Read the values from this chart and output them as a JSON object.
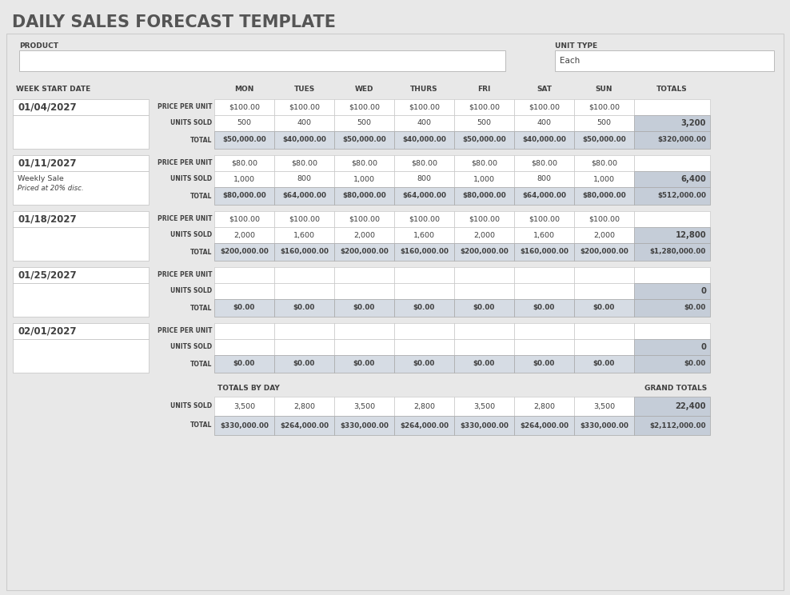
{
  "title": "DAILY SALES FORECAST TEMPLATE",
  "title_color": "#555555",
  "bg_color": "#e8e8e8",
  "panel_bg": "#e8e8e8",
  "white": "#ffffff",
  "cell_blue_light": "#d6dce4",
  "cell_blue_med": "#c5cdd8",
  "total_row_bg": "#dce6f1",
  "dark_text": "#404040",
  "product_label": "PRODUCT",
  "unit_type_label": "UNIT TYPE",
  "unit_type_value": "Each",
  "day_headers": [
    "MON",
    "TUES",
    "WED",
    "THURS",
    "FRI",
    "SAT",
    "SUN",
    "TOTALS"
  ],
  "weeks": [
    {
      "date": "01/04/2027",
      "note1": "",
      "note2": "",
      "price_per_unit": [
        "$100.00",
        "$100.00",
        "$100.00",
        "$100.00",
        "$100.00",
        "$100.00",
        "$100.00"
      ],
      "units_sold": [
        "500",
        "400",
        "500",
        "400",
        "500",
        "400",
        "500"
      ],
      "units_total": "3,200",
      "totals": [
        "$50,000.00",
        "$40,000.00",
        "$50,000.00",
        "$40,000.00",
        "$50,000.00",
        "$40,000.00",
        "$50,000.00"
      ],
      "grand_total": "$320,000.00"
    },
    {
      "date": "01/11/2027",
      "note1": "Weekly Sale",
      "note2": "Priced at 20% disc.",
      "price_per_unit": [
        "$80.00",
        "$80.00",
        "$80.00",
        "$80.00",
        "$80.00",
        "$80.00",
        "$80.00"
      ],
      "units_sold": [
        "1,000",
        "800",
        "1,000",
        "800",
        "1,000",
        "800",
        "1,000"
      ],
      "units_total": "6,400",
      "totals": [
        "$80,000.00",
        "$64,000.00",
        "$80,000.00",
        "$64,000.00",
        "$80,000.00",
        "$64,000.00",
        "$80,000.00"
      ],
      "grand_total": "$512,000.00"
    },
    {
      "date": "01/18/2027",
      "note1": "",
      "note2": "",
      "price_per_unit": [
        "$100.00",
        "$100.00",
        "$100.00",
        "$100.00",
        "$100.00",
        "$100.00",
        "$100.00"
      ],
      "units_sold": [
        "2,000",
        "1,600",
        "2,000",
        "1,600",
        "2,000",
        "1,600",
        "2,000"
      ],
      "units_total": "12,800",
      "totals": [
        "$200,000.00",
        "$160,000.00",
        "$200,000.00",
        "$160,000.00",
        "$200,000.00",
        "$160,000.00",
        "$200,000.00"
      ],
      "grand_total": "$1,280,000.00"
    },
    {
      "date": "01/25/2027",
      "note1": "",
      "note2": "",
      "price_per_unit": [
        "",
        "",
        "",
        "",
        "",
        "",
        ""
      ],
      "units_sold": [
        "",
        "",
        "",
        "",
        "",
        "",
        ""
      ],
      "units_total": "0",
      "totals": [
        "$0.00",
        "$0.00",
        "$0.00",
        "$0.00",
        "$0.00",
        "$0.00",
        "$0.00"
      ],
      "grand_total": "$0.00"
    },
    {
      "date": "02/01/2027",
      "note1": "",
      "note2": "",
      "price_per_unit": [
        "",
        "",
        "",
        "",
        "",
        "",
        ""
      ],
      "units_sold": [
        "",
        "",
        "",
        "",
        "",
        "",
        ""
      ],
      "units_total": "0",
      "totals": [
        "$0.00",
        "$0.00",
        "$0.00",
        "$0.00",
        "$0.00",
        "$0.00",
        "$0.00"
      ],
      "grand_total": "$0.00"
    }
  ],
  "totals_by_day_label": "TOTALS BY DAY",
  "grand_totals_label": "GRAND TOTALS",
  "summary_units": [
    "3,500",
    "2,800",
    "3,500",
    "2,800",
    "3,500",
    "2,800",
    "3,500"
  ],
  "summary_units_total": "22,400",
  "summary_totals": [
    "$330,000.00",
    "$264,000.00",
    "$330,000.00",
    "$264,000.00",
    "$330,000.00",
    "$264,000.00",
    "$330,000.00"
  ],
  "summary_grand_total": "$2,112,000.00"
}
